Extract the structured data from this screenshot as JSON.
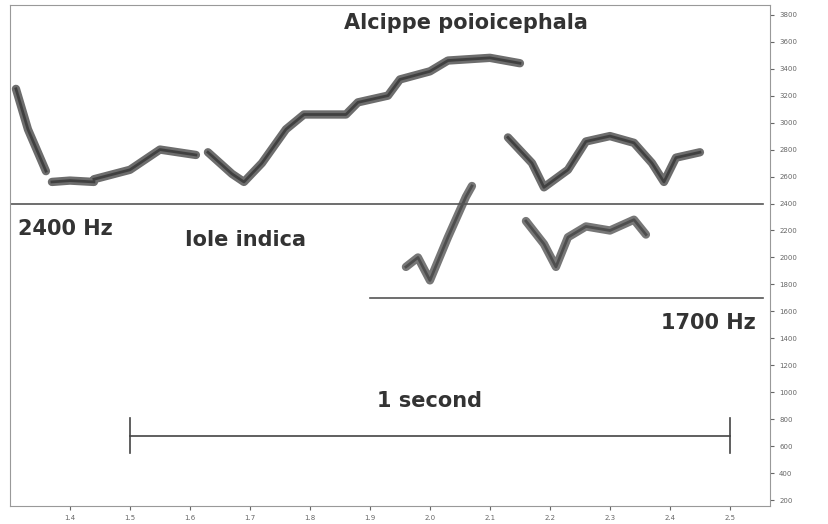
{
  "chart_data": {
    "type": "spectrogram",
    "annotations": [
      "Alcippe poioicephala",
      "Iole indica"
    ],
    "reference_lines": [
      {
        "value": 2400,
        "label": "2400 Hz",
        "x": [
          1.3,
          2.555
        ]
      },
      {
        "value": 1700,
        "label": "1700 Hz",
        "x": [
          1.9,
          2.555
        ]
      }
    ],
    "scale_bar": {
      "label": "1 second",
      "x": [
        1.5,
        2.5
      ]
    },
    "series": [
      {
        "color": "#3c3c3c",
        "x": [
          1.31,
          1.33,
          1.36,
          null,
          1.37,
          1.4,
          1.44,
          null,
          1.44,
          1.5,
          1.55,
          1.58,
          1.61,
          null,
          1.63,
          1.67,
          1.69,
          1.72,
          1.76,
          1.79,
          1.86,
          1.88,
          1.93,
          1.95,
          2.0,
          2.03,
          2.1,
          2.15,
          null,
          2.13,
          2.17,
          2.19,
          2.23,
          2.26,
          2.3,
          2.34,
          2.37,
          2.39,
          2.41,
          2.45
        ],
        "values": [
          3250,
          2950,
          2640,
          null,
          2560,
          2570,
          2560,
          null,
          2580,
          2650,
          2800,
          2780,
          2760,
          null,
          2780,
          2620,
          2560,
          2700,
          2950,
          3060,
          3060,
          3150,
          3200,
          3320,
          3380,
          3460,
          3480,
          3440,
          null,
          2890,
          2700,
          2520,
          2650,
          2860,
          2900,
          2850,
          2700,
          2560,
          2740,
          2780
        ]
      },
      {
        "color": "#4a4a4a",
        "x": [
          1.96,
          1.98,
          2.0,
          2.03,
          2.06,
          2.07,
          null,
          2.16,
          2.19,
          2.21,
          2.23,
          2.26,
          2.3,
          2.34,
          2.36
        ],
        "values": [
          1930,
          2000,
          1830,
          2150,
          2450,
          2530,
          null,
          2270,
          2100,
          1930,
          2150,
          2230,
          2200,
          2280,
          2170
        ]
      }
    ],
    "xlim": [
      1.3,
      2.567
    ],
    "ylim": [
      160,
      3870
    ],
    "xticks": [
      1.4,
      1.5,
      1.6,
      1.7,
      1.8,
      1.9,
      2.0,
      2.1,
      2.2,
      2.3,
      2.4,
      2.5
    ],
    "yticks": [
      200,
      400,
      600,
      800,
      1000,
      1200,
      1400,
      1600,
      1800,
      2000,
      2200,
      2400,
      2600,
      2800,
      3000,
      3200,
      3400,
      3600,
      3800
    ]
  }
}
